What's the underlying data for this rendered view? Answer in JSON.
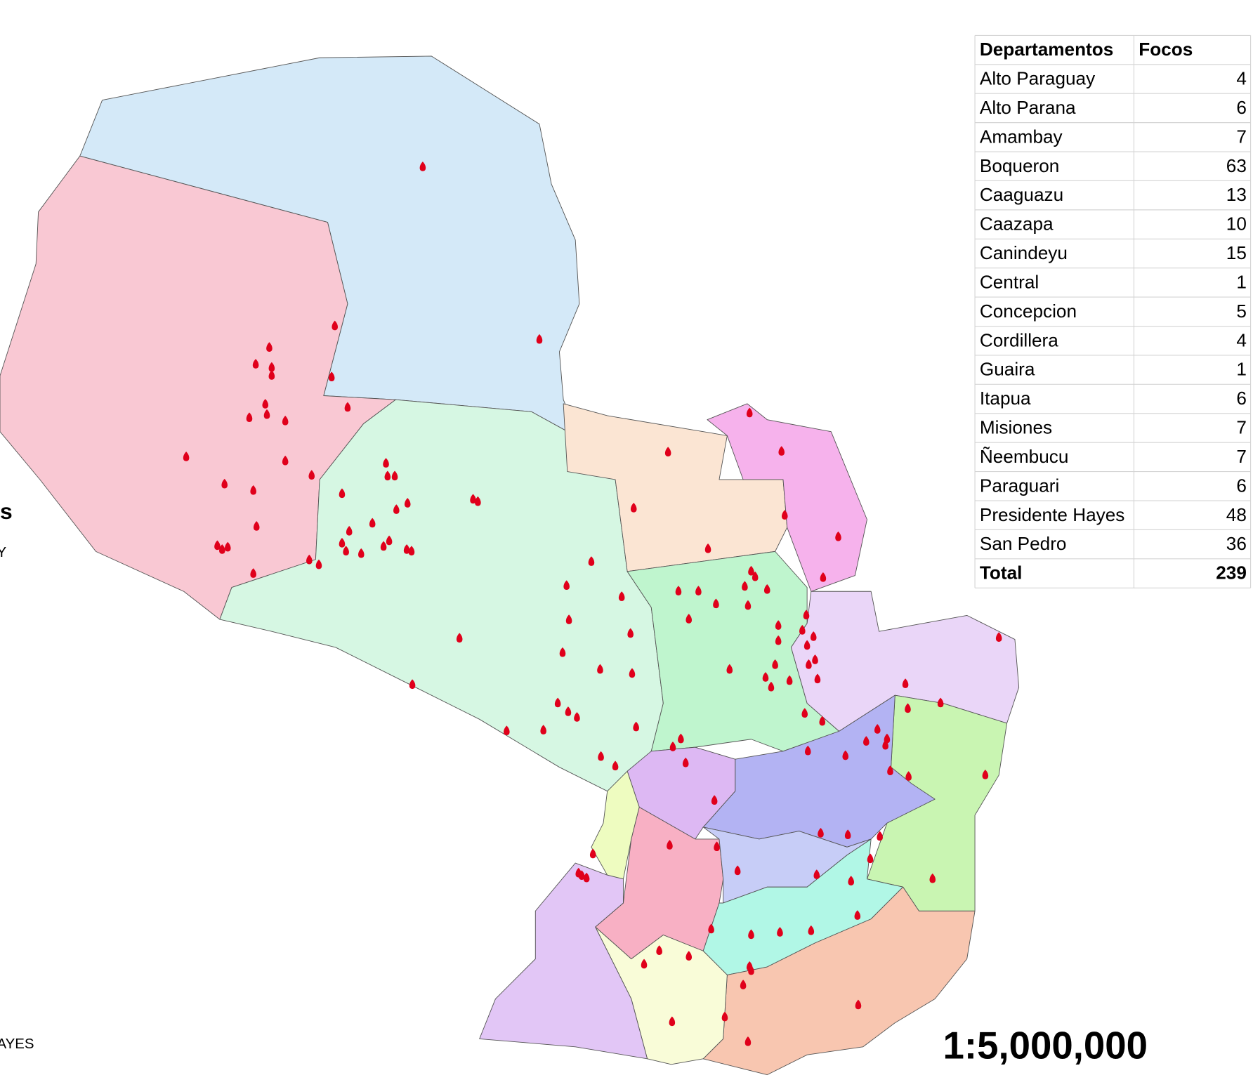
{
  "legend_fragments": [
    "s",
    "Y",
    "AYES"
  ],
  "table": {
    "header": [
      "Departamentos",
      "Focos"
    ],
    "rows": [
      [
        "Alto Paraguay",
        4
      ],
      [
        "Alto Parana",
        6
      ],
      [
        "Amambay",
        7
      ],
      [
        "Boqueron",
        63
      ],
      [
        "Caaguazu",
        13
      ],
      [
        "Caazapa",
        10
      ],
      [
        "Canindeyu",
        15
      ],
      [
        "Central",
        1
      ],
      [
        "Concepcion",
        5
      ],
      [
        "Cordillera",
        4
      ],
      [
        "Guaira",
        1
      ],
      [
        "Itapua",
        6
      ],
      [
        "Misiones",
        7
      ],
      [
        "Ñeembucu",
        7
      ],
      [
        "Paraguari",
        6
      ],
      [
        "Presidente Hayes",
        48
      ],
      [
        "San Pedro",
        36
      ]
    ],
    "total": [
      "Total",
      239
    ]
  },
  "scale": "1:5,000,000"
}
